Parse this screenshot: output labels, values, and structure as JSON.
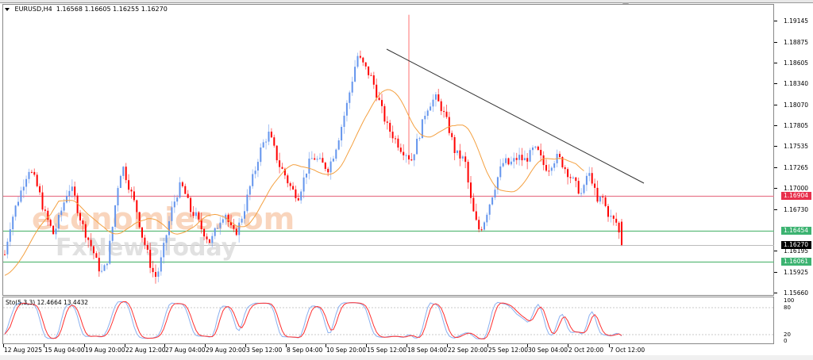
{
  "window": {
    "symbol": "EURUSD,H4",
    "ohlc": "1.16568 1.16605 1.16255 1.16270"
  },
  "colors": {
    "bull": "#6495ED",
    "bear": "#FF0000",
    "ma": "#F4A040",
    "trendline": "#333333",
    "resistance": "#E8788C",
    "support": "#5DBB7A",
    "current": "#BBBBBB",
    "sto_main": "#8AB0F0",
    "sto_signal": "#FF3030"
  },
  "price_axis": {
    "labels": [
      "1.19145",
      "1.18875",
      "1.18605",
      "1.18340",
      "1.18070",
      "1.17805",
      "1.17535",
      "1.17265",
      "1.17000",
      "1.16730",
      "1.16195",
      "1.15925",
      "1.15660"
    ],
    "tags": [
      {
        "value": "1.16904",
        "color": "#E8304C",
        "text_color": "#ffffff"
      },
      {
        "value": "1.16454",
        "color": "#3CB371",
        "text_color": "#ffffff"
      },
      {
        "value": "1.16270",
        "color": "#000000",
        "text_color": "#ffffff"
      },
      {
        "value": "1.16061",
        "color": "#3CB371",
        "text_color": "#ffffff"
      }
    ]
  },
  "time_axis": {
    "labels": [
      "12 Aug 2025",
      "15 Aug 04:00",
      "19 Aug 20:00",
      "22 Aug 12:00",
      "27 Aug 04:00",
      "29 Aug 20:00",
      "3 Sep 12:00",
      "8 Sep 04:00",
      "10 Sep 20:00",
      "15 Sep 12:00",
      "18 Sep 04:00",
      "22 Sep 20:00",
      "25 Sep 12:00",
      "30 Sep 04:00",
      "2 Oct 20:00",
      "7 Oct 12:00"
    ]
  },
  "indicator": {
    "title": "Sto(5,3,3) 12.4664 13.4432",
    "levels": [
      "100",
      "80",
      "20",
      "0"
    ]
  },
  "watermark": {
    "line1": "economies.com",
    "line2": "FxNewsToday"
  },
  "chart_data": {
    "type": "candlestick",
    "title": "EURUSD,H4",
    "ohlc_last": {
      "open": 1.16568,
      "high": 1.16605,
      "low": 1.16255,
      "close": 1.1627
    },
    "ylim": [
      1.156,
      1.1935
    ],
    "x_ticks": [
      "12 Aug 2025",
      "15 Aug 04:00",
      "19 Aug 20:00",
      "22 Aug 12:00",
      "27 Aug 04:00",
      "29 Aug 20:00",
      "3 Sep 12:00",
      "8 Sep 04:00",
      "10 Sep 20:00",
      "15 Sep 12:00",
      "18 Sep 04:00",
      "22 Sep 20:00",
      "25 Sep 12:00",
      "30 Sep 04:00",
      "2 Oct 20:00",
      "7 Oct 12:00"
    ],
    "y_ticks": [
      1.19145,
      1.18875,
      1.18605,
      1.1834,
      1.1807,
      1.17805,
      1.17535,
      1.17265,
      1.17,
      1.1673,
      1.16195,
      1.15925,
      1.1566
    ],
    "horizontal_levels": [
      {
        "name": "resistance",
        "value": 1.16904
      },
      {
        "name": "support-1",
        "value": 1.16454
      },
      {
        "name": "current-price",
        "value": 1.1627
      },
      {
        "name": "support-2",
        "value": 1.16061
      }
    ],
    "trendline": {
      "from": {
        "date": "15 Sep 12:00",
        "price": 1.188
      },
      "to": {
        "date": "7 Oct 12:00",
        "price": 1.171
      }
    },
    "close_path": [
      1.1615,
      1.165,
      1.1672,
      1.169,
      1.171,
      1.1725,
      1.1712,
      1.1695,
      1.167,
      1.1655,
      1.164,
      1.166,
      1.168,
      1.17,
      1.1695,
      1.167,
      1.165,
      1.1635,
      1.162,
      1.16,
      1.159,
      1.161,
      1.165,
      1.17,
      1.173,
      1.171,
      1.169,
      1.167,
      1.164,
      1.162,
      1.1595,
      1.1585,
      1.161,
      1.164,
      1.167,
      1.169,
      1.1705,
      1.169,
      1.167,
      1.1665,
      1.165,
      1.164,
      1.163,
      1.1645,
      1.166,
      1.167,
      1.165,
      1.164,
      1.1655,
      1.1675,
      1.17,
      1.172,
      1.1745,
      1.176,
      1.177,
      1.175,
      1.173,
      1.172,
      1.1705,
      1.1695,
      1.169,
      1.171,
      1.173,
      1.174,
      1.1735,
      1.173,
      1.1725,
      1.174,
      1.176,
      1.1785,
      1.181,
      1.184,
      1.187,
      1.186,
      1.185,
      1.184,
      1.182,
      1.18,
      1.178,
      1.177,
      1.176,
      1.175,
      1.1745,
      1.1735,
      1.1755,
      1.1775,
      1.18,
      1.181,
      1.1815,
      1.1805,
      1.179,
      1.177,
      1.1745,
      1.174,
      1.1735,
      1.169,
      1.166,
      1.1645,
      1.166,
      1.168,
      1.17,
      1.172,
      1.1735,
      1.173,
      1.1735,
      1.174,
      1.1735,
      1.174,
      1.175,
      1.1745,
      1.173,
      1.1725,
      1.1735,
      1.174,
      1.173,
      1.172,
      1.171,
      1.17,
      1.169,
      1.172,
      1.171,
      1.168,
      1.169,
      1.167,
      1.166,
      1.1655,
      1.1627
    ],
    "ma_label": "moving average (orange)",
    "indicator": {
      "name": "Stochastic (5,3,3)",
      "main": 12.4664,
      "signal": 13.4432,
      "levels": [
        20,
        80
      ],
      "ylim": [
        0,
        100
      ]
    }
  }
}
